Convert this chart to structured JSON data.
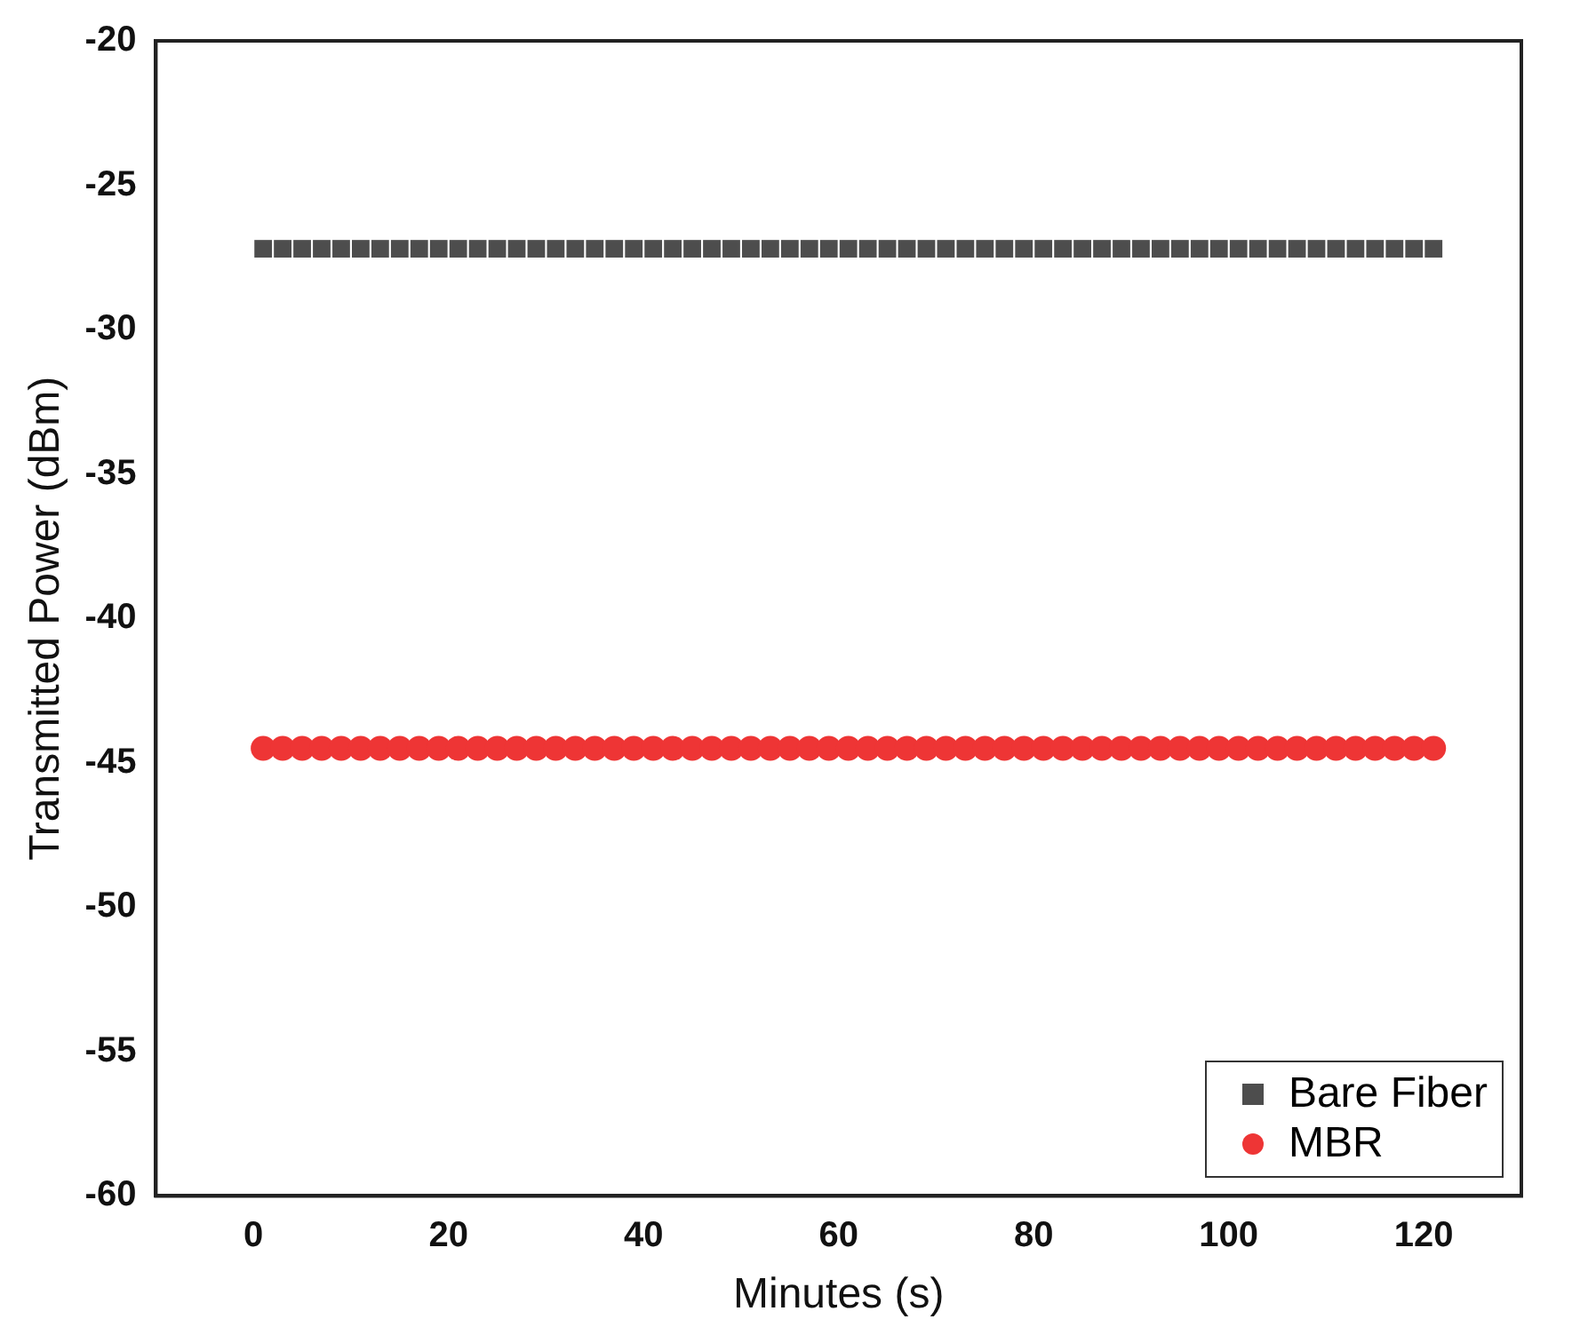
{
  "chart_data": {
    "type": "scatter",
    "xlabel": "Minutes (s)",
    "ylabel": "Transmitted Power (dBm)",
    "x": [
      1,
      3,
      5,
      7,
      9,
      11,
      13,
      15,
      17,
      19,
      21,
      23,
      25,
      27,
      29,
      31,
      33,
      35,
      37,
      39,
      41,
      43,
      45,
      47,
      49,
      51,
      53,
      55,
      57,
      59,
      61,
      63,
      65,
      67,
      69,
      71,
      73,
      75,
      77,
      79,
      81,
      83,
      85,
      87,
      89,
      91,
      93,
      95,
      97,
      99,
      101,
      103,
      105,
      107,
      109,
      111,
      113,
      115,
      117,
      119,
      121
    ],
    "series": [
      {
        "name": "Bare Fiber",
        "color": "#4d4d4d",
        "marker": "square",
        "values": [
          -27.2,
          -27.2,
          -27.2,
          -27.2,
          -27.2,
          -27.2,
          -27.2,
          -27.2,
          -27.2,
          -27.2,
          -27.2,
          -27.2,
          -27.2,
          -27.2,
          -27.2,
          -27.2,
          -27.2,
          -27.2,
          -27.2,
          -27.2,
          -27.2,
          -27.2,
          -27.2,
          -27.2,
          -27.2,
          -27.2,
          -27.2,
          -27.2,
          -27.2,
          -27.2,
          -27.2,
          -27.2,
          -27.2,
          -27.2,
          -27.2,
          -27.2,
          -27.2,
          -27.2,
          -27.2,
          -27.2,
          -27.2,
          -27.2,
          -27.2,
          -27.2,
          -27.2,
          -27.2,
          -27.2,
          -27.2,
          -27.2,
          -27.2,
          -27.2,
          -27.2,
          -27.2,
          -27.2,
          -27.2,
          -27.2,
          -27.2,
          -27.2,
          -27.2,
          -27.2,
          -27.2
        ]
      },
      {
        "name": "MBR",
        "color": "#ee3535",
        "marker": "circle",
        "values": [
          -44.5,
          -44.5,
          -44.5,
          -44.5,
          -44.5,
          -44.5,
          -44.5,
          -44.5,
          -44.5,
          -44.5,
          -44.5,
          -44.5,
          -44.5,
          -44.5,
          -44.5,
          -44.5,
          -44.5,
          -44.5,
          -44.5,
          -44.5,
          -44.5,
          -44.5,
          -44.5,
          -44.5,
          -44.5,
          -44.5,
          -44.5,
          -44.5,
          -44.5,
          -44.5,
          -44.5,
          -44.5,
          -44.5,
          -44.5,
          -44.5,
          -44.5,
          -44.5,
          -44.5,
          -44.5,
          -44.5,
          -44.5,
          -44.5,
          -44.5,
          -44.5,
          -44.5,
          -44.5,
          -44.5,
          -44.5,
          -44.5,
          -44.5,
          -44.5,
          -44.5,
          -44.5,
          -44.5,
          -44.5,
          -44.5,
          -44.5,
          -44.5,
          -44.5,
          -44.5,
          -44.5
        ]
      }
    ],
    "xlim": [
      -10,
      130
    ],
    "xticks": [
      0,
      20,
      40,
      60,
      80,
      100,
      120
    ],
    "ylim": [
      -60,
      -20
    ],
    "yticks": [
      -60,
      -55,
      -50,
      -45,
      -40,
      -35,
      -30,
      -25,
      -20
    ],
    "grid": false,
    "legend": "bottom right"
  }
}
